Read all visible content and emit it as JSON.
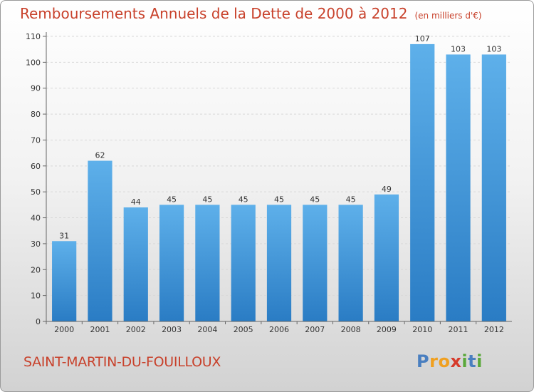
{
  "title": "Remboursements Annuels de la Dette de 2000 à 2012",
  "subtitle": "(en milliers d'€)",
  "city": "SAINT-MARTIN-DU-FOUILLOUX",
  "brand": {
    "letters": [
      "P",
      "r",
      "o",
      "x",
      "i",
      "t",
      "i"
    ],
    "colors": [
      "#4a7fc0",
      "#f0a020",
      "#f0a020",
      "#d63a2a",
      "#5aa83a",
      "#4a7fc0",
      "#5aa83a"
    ]
  },
  "colors": {
    "bar": "#3a8fd6",
    "bar_light": "#5eb0ea",
    "title": "#c8412b"
  },
  "chart_data": {
    "type": "bar",
    "categories": [
      "2000",
      "2001",
      "2002",
      "2003",
      "2004",
      "2005",
      "2006",
      "2007",
      "2008",
      "2009",
      "2010",
      "2011",
      "2012"
    ],
    "values": [
      31,
      62,
      44,
      45,
      45,
      45,
      45,
      45,
      45,
      49,
      107,
      103,
      103
    ],
    "yticks": [
      0,
      10,
      20,
      30,
      40,
      50,
      60,
      70,
      80,
      90,
      100,
      110
    ],
    "ylim": [
      0,
      110
    ],
    "grid": true
  }
}
